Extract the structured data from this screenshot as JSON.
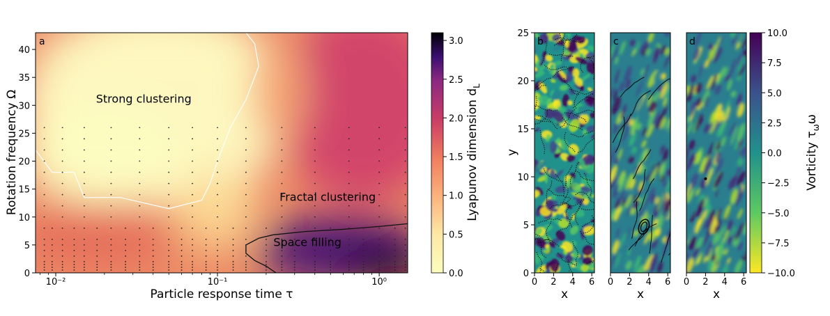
{
  "chart_data": [
    {
      "type": "heatmap",
      "panel_label": "a",
      "xlabel": "Particle response time τ",
      "ylabel": "Rotation frequency Ω",
      "x_scale": "log",
      "xlim": [
        0.0075,
        1.5
      ],
      "ylim": [
        0,
        43
      ],
      "x_ticks": [
        {
          "value": 0.01,
          "label": "10⁻²"
        },
        {
          "value": 0.1,
          "label": "10⁻¹"
        },
        {
          "value": 1,
          "label": "10⁰"
        }
      ],
      "y_ticks": [
        0,
        5,
        10,
        15,
        20,
        25,
        30,
        35,
        40
      ],
      "annotations": [
        {
          "text": "Strong clustering",
          "x": 0.035,
          "y": 30.5
        },
        {
          "text": "Fractal clustering",
          "x": 0.48,
          "y": 12.9
        },
        {
          "text": "Space filling",
          "x": 0.36,
          "y": 4.8
        }
      ],
      "colorbar": {
        "label": "Lyapunov dimension d",
        "label_subscript": "L",
        "range": [
          0,
          3.1
        ],
        "ticks": [
          "0.0",
          "0.5",
          "1.0",
          "1.5",
          "2.0",
          "2.5",
          "3.0"
        ],
        "colormap": "magma_r"
      },
      "contours": [
        {
          "level": 1.0,
          "color": "#ffffff",
          "points": [
            [
              0.0075,
              22
            ],
            [
              0.0095,
              18
            ],
            [
              0.013,
              18
            ],
            [
              0.015,
              13.5
            ],
            [
              0.025,
              13.5
            ],
            [
              0.05,
              11.5
            ],
            [
              0.08,
              13
            ],
            [
              0.09,
              16
            ],
            [
              0.1,
              20
            ],
            [
              0.12,
              26
            ],
            [
              0.15,
              31
            ],
            [
              0.18,
              37
            ],
            [
              0.17,
              41
            ],
            [
              0.15,
              43
            ]
          ]
        },
        {
          "level": 2.0,
          "color": "#000000",
          "points": [
            [
              1.5,
              8.8
            ],
            [
              1.0,
              8.3
            ],
            [
              0.6,
              7.8
            ],
            [
              0.35,
              7.4
            ],
            [
              0.22,
              6.8
            ],
            [
              0.18,
              6.2
            ],
            [
              0.15,
              5.0
            ],
            [
              0.15,
              3.5
            ],
            [
              0.17,
              2.2
            ],
            [
              0.2,
              1.2
            ],
            [
              0.23,
              0
            ]
          ]
        }
      ],
      "sample_points": {
        "marker": "dot",
        "x": [
          0.0085,
          0.0095,
          0.011,
          0.013,
          0.015,
          0.018,
          0.022,
          0.027,
          0.033,
          0.04,
          0.05,
          0.06,
          0.07,
          0.085,
          0.1,
          0.125,
          0.15,
          0.2,
          0.25,
          0.3,
          0.4,
          0.5,
          0.65,
          0.8,
          1.0,
          1.25,
          1.45
        ],
        "y": [
          0.5,
          1.0,
          1.5,
          2.0,
          3.0,
          4.0,
          5.0,
          6.0,
          8.0,
          10.0,
          12.0,
          14.0,
          16.0,
          18.0,
          20.0,
          22.0,
          24.0,
          26.0
        ]
      }
    },
    {
      "type": "heatmap",
      "panel_label": "b",
      "xlabel": "x",
      "ylabel": "y",
      "xlim": [
        0,
        6.28
      ],
      "ylim": [
        0,
        25
      ],
      "x_ticks": [
        0,
        2,
        4,
        6
      ],
      "y_ticks": [
        0,
        5,
        10,
        15,
        20,
        25
      ],
      "colormap": "viridis_r",
      "description_overlay": "black particle positions forming dense filaments"
    },
    {
      "type": "heatmap",
      "panel_label": "c",
      "xlabel": "x",
      "xlim": [
        0,
        6.28
      ],
      "ylim": [
        0,
        25
      ],
      "x_ticks": [
        0,
        2,
        4,
        6
      ],
      "colormap": "viridis_r",
      "description_overlay": "sparse black particle filaments and a ring near x≈3.5, y≈4.8"
    },
    {
      "type": "heatmap",
      "panel_label": "d",
      "xlabel": "x",
      "xlim": [
        0,
        6.28
      ],
      "ylim": [
        0,
        25
      ],
      "x_ticks": [
        0,
        2,
        4,
        6
      ],
      "colormap": "viridis_r",
      "description_overlay": "single black particle cluster at x≈2.0, y≈9.8",
      "colorbar": {
        "label": "Vorticity τ",
        "label_subscript": "ω",
        "label_suffix": "ω",
        "range": [
          -10,
          10
        ],
        "ticks": [
          "10.0",
          "7.5",
          "5.0",
          "2.5",
          "0.0",
          "−2.5",
          "−5.0",
          "−7.5",
          "−10.0"
        ],
        "colormap": "viridis_r"
      }
    }
  ]
}
